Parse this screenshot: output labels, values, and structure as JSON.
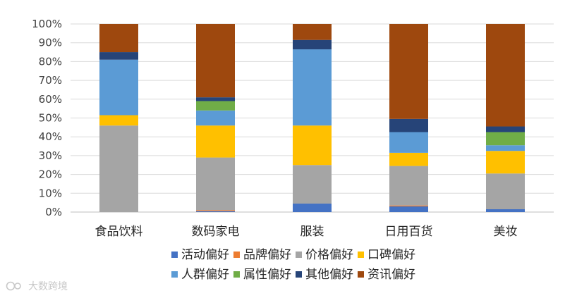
{
  "chart_data": {
    "type": "bar",
    "stacked": true,
    "percent": true,
    "categories": [
      "食品饮料",
      "数码家电",
      "服装",
      "日用百货",
      "美妆"
    ],
    "ylim": [
      0,
      100
    ],
    "yticks": [
      "0%",
      "10%",
      "20%",
      "30%",
      "40%",
      "50%",
      "60%",
      "70%",
      "80%",
      "90%",
      "100%"
    ],
    "grid": true,
    "legend_position": "bottom",
    "series": [
      {
        "name": "活动偏好",
        "color": "#4472C4",
        "values": [
          0,
          0.5,
          4.5,
          3,
          1.5
        ]
      },
      {
        "name": "品牌偏好",
        "color": "#ED7D31",
        "values": [
          0,
          0.5,
          0,
          0.5,
          0
        ]
      },
      {
        "name": "价格偏好",
        "color": "#A5A5A5",
        "values": [
          46,
          28,
          20.5,
          21,
          19
        ]
      },
      {
        "name": "口碑偏好",
        "color": "#FFC000",
        "values": [
          5.5,
          17,
          21,
          7,
          12
        ]
      },
      {
        "name": "人群偏好",
        "color": "#5B9BD5",
        "values": [
          29.5,
          8,
          40.5,
          11,
          3
        ]
      },
      {
        "name": "属性偏好",
        "color": "#70AD47",
        "values": [
          0,
          5,
          0,
          0,
          7
        ]
      },
      {
        "name": "其他偏好",
        "color": "#264478",
        "values": [
          4,
          2,
          5,
          7,
          3
        ]
      },
      {
        "name": "资讯偏好",
        "color": "#9E480E",
        "values": [
          15,
          39,
          8.5,
          50.5,
          54.5
        ]
      }
    ]
  },
  "watermark": {
    "text": "大数跨境"
  }
}
